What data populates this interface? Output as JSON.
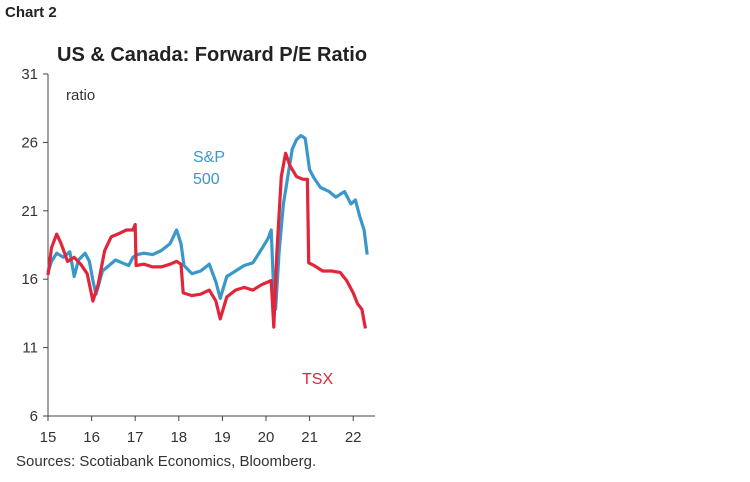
{
  "chart_label": "Chart 2",
  "source": "Sources: Scotiabank Economics, Bloomberg.",
  "chart_data": {
    "type": "line",
    "title": "US & Canada: Forward P/E Ratio",
    "ylabel": "ratio",
    "xlabel": "",
    "ylim": [
      6,
      31
    ],
    "xlim": [
      2015.0,
      2022.5
    ],
    "yticks": [
      "6",
      "11",
      "16",
      "21",
      "26",
      "31"
    ],
    "xticks": [
      {
        "pos": 2015,
        "label": "15"
      },
      {
        "pos": 2016,
        "label": "16"
      },
      {
        "pos": 2017,
        "label": "17"
      },
      {
        "pos": 2018,
        "label": "18"
      },
      {
        "pos": 2019,
        "label": "19"
      },
      {
        "pos": 2020,
        "label": "20"
      },
      {
        "pos": 2021,
        "label": "21"
      },
      {
        "pos": 2022,
        "label": "22"
      }
    ],
    "grid": false,
    "legend": "inline labels",
    "series": [
      {
        "name": "S&P 500",
        "label_lines": [
          "S&P",
          "500"
        ],
        "color": "#3a97c9",
        "points": [
          [
            2015.0,
            16.5
          ],
          [
            2015.08,
            17.3
          ],
          [
            2015.2,
            17.9
          ],
          [
            2015.35,
            17.6
          ],
          [
            2015.5,
            18.0
          ],
          [
            2015.6,
            16.2
          ],
          [
            2015.7,
            17.4
          ],
          [
            2015.85,
            17.9
          ],
          [
            2015.95,
            17.3
          ],
          [
            2016.03,
            15.9
          ],
          [
            2016.1,
            14.9
          ],
          [
            2016.25,
            16.6
          ],
          [
            2016.4,
            17.0
          ],
          [
            2016.55,
            17.4
          ],
          [
            2016.7,
            17.2
          ],
          [
            2016.85,
            17.0
          ],
          [
            2016.95,
            17.6
          ],
          [
            2017.05,
            17.8
          ],
          [
            2017.2,
            17.9
          ],
          [
            2017.4,
            17.8
          ],
          [
            2017.6,
            18.1
          ],
          [
            2017.8,
            18.6
          ],
          [
            2017.95,
            19.6
          ],
          [
            2018.05,
            18.6
          ],
          [
            2018.12,
            17.0
          ],
          [
            2018.3,
            16.4
          ],
          [
            2018.5,
            16.6
          ],
          [
            2018.7,
            17.1
          ],
          [
            2018.85,
            15.8
          ],
          [
            2018.95,
            14.6
          ],
          [
            2019.1,
            16.2
          ],
          [
            2019.3,
            16.6
          ],
          [
            2019.5,
            17.0
          ],
          [
            2019.7,
            17.2
          ],
          [
            2019.9,
            18.2
          ],
          [
            2020.05,
            19.0
          ],
          [
            2020.12,
            19.6
          ],
          [
            2020.18,
            15.0
          ],
          [
            2020.22,
            13.8
          ],
          [
            2020.3,
            18.0
          ],
          [
            2020.4,
            21.5
          ],
          [
            2020.5,
            23.5
          ],
          [
            2020.6,
            25.5
          ],
          [
            2020.7,
            26.2
          ],
          [
            2020.8,
            26.5
          ],
          [
            2020.9,
            26.3
          ],
          [
            2021.0,
            24.0
          ],
          [
            2021.1,
            23.4
          ],
          [
            2021.25,
            22.7
          ],
          [
            2021.45,
            22.4
          ],
          [
            2021.6,
            22.0
          ],
          [
            2021.8,
            22.4
          ],
          [
            2021.95,
            21.5
          ],
          [
            2022.05,
            21.8
          ],
          [
            2022.15,
            20.6
          ],
          [
            2022.25,
            19.6
          ],
          [
            2022.32,
            17.8
          ]
        ]
      },
      {
        "name": "TSX",
        "label_lines": [
          "TSX"
        ],
        "color": "#e1253a",
        "points": [
          [
            2015.0,
            16.3
          ],
          [
            2015.08,
            18.3
          ],
          [
            2015.2,
            19.3
          ],
          [
            2015.3,
            18.6
          ],
          [
            2015.45,
            17.3
          ],
          [
            2015.6,
            17.6
          ],
          [
            2015.75,
            17.1
          ],
          [
            2015.9,
            16.4
          ],
          [
            2016.03,
            14.4
          ],
          [
            2016.15,
            15.6
          ],
          [
            2016.3,
            18.1
          ],
          [
            2016.45,
            19.1
          ],
          [
            2016.6,
            19.3
          ],
          [
            2016.8,
            19.6
          ],
          [
            2016.95,
            19.6
          ],
          [
            2017.0,
            20.0
          ],
          [
            2017.02,
            17.0
          ],
          [
            2017.2,
            17.1
          ],
          [
            2017.4,
            16.9
          ],
          [
            2017.6,
            16.9
          ],
          [
            2017.8,
            17.1
          ],
          [
            2017.95,
            17.3
          ],
          [
            2018.05,
            17.1
          ],
          [
            2018.1,
            15.0
          ],
          [
            2018.3,
            14.8
          ],
          [
            2018.5,
            14.9
          ],
          [
            2018.7,
            15.2
          ],
          [
            2018.85,
            14.4
          ],
          [
            2018.95,
            13.1
          ],
          [
            2019.1,
            14.7
          ],
          [
            2019.3,
            15.2
          ],
          [
            2019.5,
            15.4
          ],
          [
            2019.7,
            15.2
          ],
          [
            2019.9,
            15.6
          ],
          [
            2020.05,
            15.8
          ],
          [
            2020.12,
            15.9
          ],
          [
            2020.18,
            12.5
          ],
          [
            2020.25,
            18.0
          ],
          [
            2020.35,
            23.5
          ],
          [
            2020.45,
            25.2
          ],
          [
            2020.55,
            24.3
          ],
          [
            2020.7,
            23.5
          ],
          [
            2020.85,
            23.3
          ],
          [
            2020.95,
            23.3
          ],
          [
            2020.98,
            17.2
          ],
          [
            2021.1,
            17.0
          ],
          [
            2021.3,
            16.6
          ],
          [
            2021.5,
            16.6
          ],
          [
            2021.7,
            16.5
          ],
          [
            2021.85,
            15.9
          ],
          [
            2022.0,
            15.0
          ],
          [
            2022.1,
            14.2
          ],
          [
            2022.2,
            13.8
          ],
          [
            2022.28,
            12.4
          ]
        ]
      }
    ]
  }
}
